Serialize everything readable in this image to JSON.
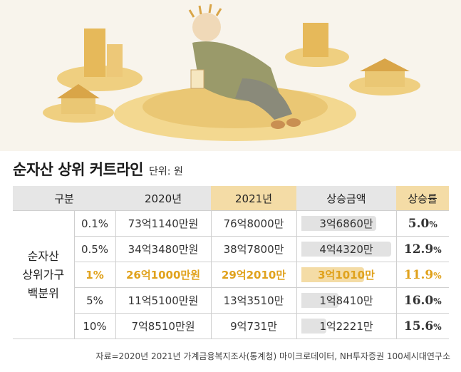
{
  "title": "순자산 상위 커트라인",
  "unit": "단위: 원",
  "headers": {
    "category": "구분",
    "y2020": "2020년",
    "y2021": "2021년",
    "increase": "상승금액",
    "rate": "상승률"
  },
  "group_label": [
    "순자산",
    "상위가구",
    "백분위"
  ],
  "rows": [
    {
      "pct": "0.1%",
      "y2020": "73억1140만원",
      "y2021": "76억8000만",
      "increase": "3억6860만",
      "increase_value": 36860,
      "rate": "5.0",
      "rate_unit": "%",
      "highlight": false
    },
    {
      "pct": "0.5%",
      "y2020": "34억3480만원",
      "y2021": "38억7800만",
      "increase": "4억4320만",
      "increase_value": 44320,
      "rate": "12.9",
      "rate_unit": "%",
      "highlight": false
    },
    {
      "pct": "1%",
      "y2020": "26억1000만원",
      "y2021": "29억2010만",
      "increase": "3억1010만",
      "increase_value": 31010,
      "rate": "11.9",
      "rate_unit": "%",
      "highlight": true
    },
    {
      "pct": "5%",
      "y2020": "11억5100만원",
      "y2021": "13억3510만",
      "increase": "1억8410만",
      "increase_value": 18410,
      "rate": "16.0",
      "rate_unit": "%",
      "highlight": false
    },
    {
      "pct": "10%",
      "y2020": "7억8510만원",
      "y2021": "9억731만",
      "increase": "1억2221만",
      "increase_value": 12221,
      "rate": "15.6",
      "rate_unit": "%",
      "highlight": false
    }
  ],
  "source": "자료=2020년 2021년 가계금융복지조사(통계청) 마이크로데이터, NH투자증권 100세시대연구소",
  "colors": {
    "highlight": "#e0a21d",
    "highlight_fill": "#f4dca6",
    "bar": "#e2e2e2",
    "header": "#e6e6e6"
  },
  "chart_data": {
    "type": "table",
    "title": "순자산 상위 커트라인",
    "unit": "원",
    "columns": [
      "구분",
      "2020년",
      "2021년",
      "상승금액",
      "상승률"
    ],
    "rows": [
      [
        "0.1%",
        "73억1140만원",
        "76억8000만",
        "3억6860만",
        "5.0%"
      ],
      [
        "0.5%",
        "34억3480만원",
        "38억7800만",
        "4억4320만",
        "12.9%"
      ],
      [
        "1%",
        "26억1000만원",
        "29억2010만",
        "3억1010만",
        "11.9%"
      ],
      [
        "5%",
        "11억5100만원",
        "13억3510만",
        "1억8410만",
        "16.0%"
      ],
      [
        "10%",
        "7억8510만원",
        "9억731만",
        "1억2221만",
        "15.6%"
      ]
    ],
    "increase_bar_values": [
      36860,
      44320,
      31010,
      18410,
      12221
    ]
  }
}
